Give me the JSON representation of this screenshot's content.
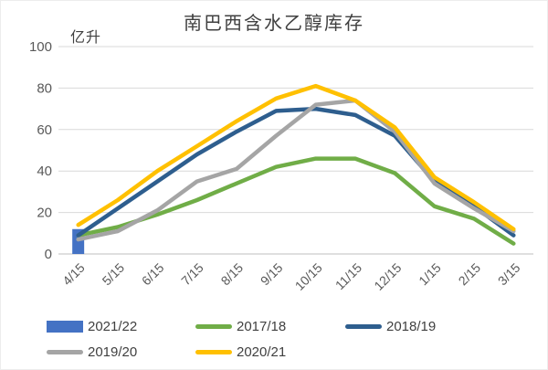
{
  "chart": {
    "title": "南巴西含水乙醇库存",
    "unit_label": "亿升"
  },
  "chart_data": {
    "type": "line",
    "title": "南巴西含水乙醇库存",
    "ylabel": "亿升",
    "xlabel": "",
    "ylim": [
      0,
      100
    ],
    "y_ticks": [
      0,
      20,
      40,
      60,
      80,
      100
    ],
    "grid": true,
    "legend_position": "bottom",
    "x_label_rotation": -45,
    "categories": [
      "4/15",
      "5/15",
      "6/15",
      "7/15",
      "8/15",
      "9/15",
      "10/15",
      "11/15",
      "12/15",
      "1/15",
      "2/15",
      "3/15"
    ],
    "series": [
      {
        "name": "2021/22",
        "type": "bar",
        "color": "#4472C4",
        "values": [
          12,
          null,
          null,
          null,
          null,
          null,
          null,
          null,
          null,
          null,
          null,
          null
        ]
      },
      {
        "name": "2017/18",
        "type": "line",
        "color": "#70AD47",
        "values": [
          9,
          13,
          19,
          26,
          34,
          42,
          46,
          46,
          39,
          23,
          17,
          5
        ]
      },
      {
        "name": "2018/19",
        "type": "line",
        "color": "#2E5E8E",
        "values": [
          9,
          22,
          35,
          48,
          59,
          69,
          70,
          67,
          57,
          35,
          23,
          9
        ]
      },
      {
        "name": "2019/20",
        "type": "line",
        "color": "#A5A5A5",
        "values": [
          7,
          11,
          21,
          35,
          41,
          57,
          72,
          74,
          59,
          34,
          22,
          11
        ]
      },
      {
        "name": "2020/21",
        "type": "line",
        "color": "#FFC000",
        "values": [
          14,
          26,
          40,
          52,
          64,
          75,
          81,
          74,
          61,
          37,
          25,
          12
        ]
      }
    ],
    "colors": {
      "gridline": "#D9D9D9",
      "axis_line": "#BFBFBF",
      "tick_label": "#595959"
    }
  }
}
